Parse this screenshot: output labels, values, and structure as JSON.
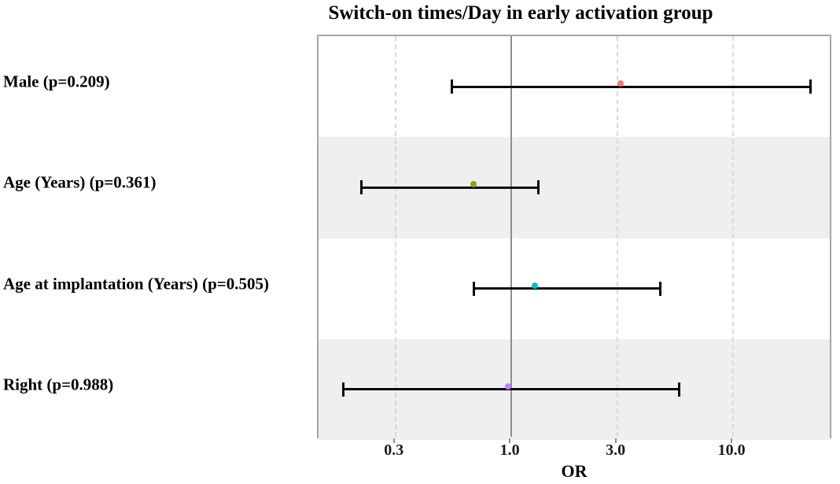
{
  "chart_data": {
    "type": "forest",
    "title": "Switch-on times/Day in early activation group",
    "xlabel": "OR",
    "x_scale": "log10",
    "xlim": [
      0.135,
      28.2
    ],
    "x_ticks": [
      {
        "label": "0.3",
        "value": 0.3
      },
      {
        "label": "1.0",
        "value": 1.0
      },
      {
        "label": "3.0",
        "value": 3.0
      },
      {
        "label": "10.0",
        "value": 10.0
      }
    ],
    "reference_line": 1.0,
    "grid": "dashed-vertical-at-ticks",
    "legend": "none",
    "rows": [
      {
        "label": "Male (p=0.209)",
        "variable": "Male",
        "p_value": 0.209,
        "or": 3.2,
        "ci_low": 0.54,
        "ci_high": 22.3,
        "color": "#F8766D",
        "band": "#ffffff"
      },
      {
        "label": "Age (Years) (p=0.361)",
        "variable": "Age (Years)",
        "p_value": 0.361,
        "or": 0.7,
        "ci_low": 0.21,
        "ci_high": 1.32,
        "color": "#7CAE00",
        "band": "#efefef"
      },
      {
        "label": "Age at implantation (Years) (p=0.505)",
        "variable": "Age at implantation (Years)",
        "p_value": 0.505,
        "or": 1.32,
        "ci_low": 0.68,
        "ci_high": 4.7,
        "color": "#00BFC4",
        "band": "#ffffff"
      },
      {
        "label": "Right (p=0.988)",
        "variable": "Right",
        "p_value": 0.988,
        "or": 1.0,
        "ci_low": 0.175,
        "ci_high": 5.7,
        "color": "#C77CFF",
        "band": "#efefef"
      }
    ],
    "style_colors": {
      "panel_border": "#a6a6a6",
      "reference_line": "#8c8c8c",
      "dashed_gridline": "#d9d9d9",
      "error_bar": "#0a0a0a",
      "shaded_band": "#efefef",
      "text": "#000000"
    }
  }
}
